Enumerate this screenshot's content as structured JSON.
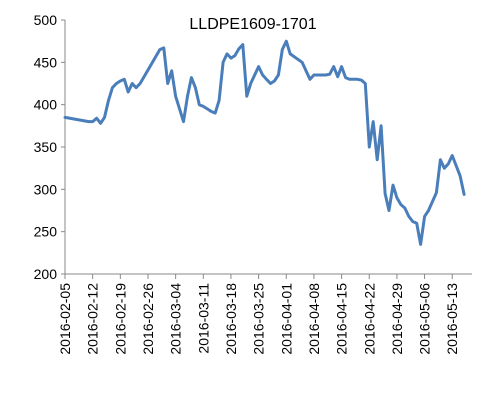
{
  "chart_data": {
    "type": "line",
    "title": "LLDPE1609-1701",
    "xlabel": "",
    "ylabel": "",
    "ylim": [
      200,
      500
    ],
    "yticks": [
      200,
      250,
      300,
      350,
      400,
      450,
      500
    ],
    "xlim": [
      "2016-02-05",
      "2016-05-18"
    ],
    "xticks": [
      "2016-02-05",
      "2016-02-12",
      "2016-02-19",
      "2016-02-26",
      "2016-03-04",
      "2016-03-11",
      "2016-03-18",
      "2016-03-25",
      "2016-04-01",
      "2016-04-08",
      "2016-04-15",
      "2016-04-22",
      "2016-04-29",
      "2016-05-06",
      "2016-05-13"
    ],
    "grid": false,
    "legend": "none",
    "line_color": "#4a7ebb",
    "series": [
      {
        "x": [
          "2016-02-05",
          "2016-02-11",
          "2016-02-12",
          "2016-02-13",
          "2016-02-14",
          "2016-02-15",
          "2016-02-16",
          "2016-02-17",
          "2016-02-18",
          "2016-02-19",
          "2016-02-20",
          "2016-02-21",
          "2016-02-22",
          "2016-02-23",
          "2016-02-24",
          "2016-02-26",
          "2016-02-29",
          "2016-03-01",
          "2016-03-02",
          "2016-03-03",
          "2016-03-04",
          "2016-03-06",
          "2016-03-07",
          "2016-03-08",
          "2016-03-09",
          "2016-03-10",
          "2016-03-11",
          "2016-03-12",
          "2016-03-13",
          "2016-03-14",
          "2016-03-15",
          "2016-03-16",
          "2016-03-17",
          "2016-03-18",
          "2016-03-19",
          "2016-03-20",
          "2016-03-21",
          "2016-03-22",
          "2016-03-23",
          "2016-03-25",
          "2016-03-26",
          "2016-03-27",
          "2016-03-28",
          "2016-03-29",
          "2016-03-30",
          "2016-03-31",
          "2016-04-01",
          "2016-04-02",
          "2016-04-05",
          "2016-04-06",
          "2016-04-07",
          "2016-04-08",
          "2016-04-09",
          "2016-04-10",
          "2016-04-11",
          "2016-04-12",
          "2016-04-13",
          "2016-04-14",
          "2016-04-15",
          "2016-04-16",
          "2016-04-17",
          "2016-04-18",
          "2016-04-19",
          "2016-04-20",
          "2016-04-21",
          "2016-04-22",
          "2016-04-23",
          "2016-04-24",
          "2016-04-25",
          "2016-04-26",
          "2016-04-27",
          "2016-04-28",
          "2016-04-29",
          "2016-04-30",
          "2016-05-01",
          "2016-05-02",
          "2016-05-03",
          "2016-05-04",
          "2016-05-05",
          "2016-05-06",
          "2016-05-07",
          "2016-05-09",
          "2016-05-10",
          "2016-05-11",
          "2016-05-12",
          "2016-05-13",
          "2016-05-15",
          "2016-05-16"
        ],
        "y": [
          385,
          380,
          380,
          384,
          378,
          385,
          405,
          420,
          425,
          428,
          430,
          415,
          425,
          420,
          425,
          441,
          465,
          467,
          425,
          440,
          410,
          380,
          410,
          432,
          420,
          400,
          398,
          395,
          392,
          390,
          405,
          450,
          460,
          455,
          458,
          466,
          471,
          410,
          425,
          445,
          435,
          430,
          425,
          428,
          435,
          465,
          475,
          460,
          450,
          440,
          430,
          435,
          435,
          435,
          435,
          436,
          445,
          433,
          445,
          432,
          430,
          430,
          430,
          429,
          425,
          350,
          380,
          335,
          375,
          295,
          275,
          305,
          290,
          282,
          278,
          268,
          262,
          260,
          235,
          268,
          275,
          296,
          335,
          325,
          330,
          340,
          316,
          294
        ]
      }
    ]
  }
}
